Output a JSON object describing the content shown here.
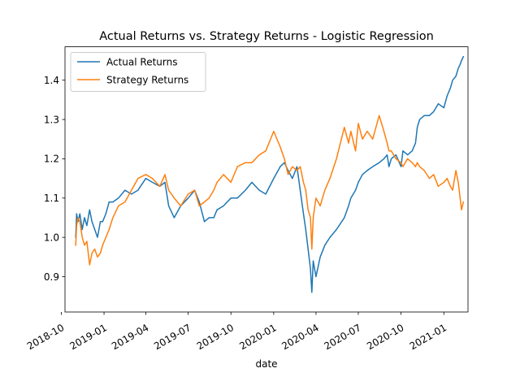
{
  "chart_data": {
    "type": "line",
    "title": "Actual Returns vs. Strategy Returns - Logistic Regression",
    "xlabel": "date",
    "ylabel": "",
    "x_range": [
      "2018-10-09",
      "2021-02-22"
    ],
    "ylim": [
      0.81,
      1.485
    ],
    "grid": false,
    "legend_placement": "top-left",
    "x_ticks": [
      "2018-10",
      "2019-01",
      "2019-04",
      "2019-07",
      "2019-10",
      "2020-01",
      "2020-04",
      "2020-07",
      "2020-10",
      "2021-01"
    ],
    "y_ticks": [
      0.9,
      1.0,
      1.1,
      1.2,
      1.3,
      1.4
    ],
    "y_tick_labels": [
      "0.9",
      "1.0",
      "1.1",
      "1.2",
      "1.3",
      "1.4"
    ],
    "series": [
      {
        "name": "Actual Returns",
        "color": "#1f77b4",
        "x": [
          "2018-11-01",
          "2018-11-03",
          "2018-11-06",
          "2018-11-10",
          "2018-11-15",
          "2018-11-20",
          "2018-11-25",
          "2018-12-01",
          "2018-12-06",
          "2018-12-12",
          "2018-12-18",
          "2018-12-24",
          "2018-12-29",
          "2019-01-05",
          "2019-01-12",
          "2019-01-20",
          "2019-02-01",
          "2019-02-15",
          "2019-03-01",
          "2019-03-15",
          "2019-04-01",
          "2019-04-15",
          "2019-05-01",
          "2019-05-12",
          "2019-05-20",
          "2019-06-01",
          "2019-06-15",
          "2019-07-01",
          "2019-07-15",
          "2019-07-25",
          "2019-08-05",
          "2019-08-15",
          "2019-08-25",
          "2019-09-01",
          "2019-09-15",
          "2019-10-01",
          "2019-10-15",
          "2019-11-01",
          "2019-11-15",
          "2019-12-01",
          "2019-12-15",
          "2020-01-01",
          "2020-01-15",
          "2020-01-24",
          "2020-02-01",
          "2020-02-10",
          "2020-02-20",
          "2020-02-27",
          "2020-03-05",
          "2020-03-10",
          "2020-03-15",
          "2020-03-20",
          "2020-03-23",
          "2020-03-26",
          "2020-04-01",
          "2020-04-10",
          "2020-04-20",
          "2020-05-01",
          "2020-05-15",
          "2020-06-01",
          "2020-06-10",
          "2020-06-15",
          "2020-06-25",
          "2020-07-01",
          "2020-07-10",
          "2020-07-20",
          "2020-08-01",
          "2020-08-15",
          "2020-08-25",
          "2020-09-01",
          "2020-09-05",
          "2020-09-10",
          "2020-09-20",
          "2020-10-01",
          "2020-10-05",
          "2020-10-15",
          "2020-10-25",
          "2020-11-01",
          "2020-11-05",
          "2020-11-10",
          "2020-11-20",
          "2020-12-01",
          "2020-12-10",
          "2020-12-20",
          "2021-01-01",
          "2021-01-08",
          "2021-01-15",
          "2021-01-20",
          "2021-01-27",
          "2021-02-01",
          "2021-02-05",
          "2021-02-08",
          "2021-02-12"
        ],
        "values": [
          1.0,
          1.06,
          1.04,
          1.06,
          1.02,
          1.05,
          1.03,
          1.07,
          1.04,
          1.02,
          1.0,
          1.04,
          1.04,
          1.06,
          1.09,
          1.09,
          1.1,
          1.12,
          1.11,
          1.12,
          1.15,
          1.14,
          1.13,
          1.14,
          1.08,
          1.05,
          1.08,
          1.1,
          1.12,
          1.09,
          1.04,
          1.05,
          1.05,
          1.07,
          1.08,
          1.1,
          1.1,
          1.12,
          1.14,
          1.12,
          1.11,
          1.15,
          1.18,
          1.19,
          1.17,
          1.15,
          1.18,
          1.12,
          1.06,
          1.02,
          0.97,
          0.92,
          0.86,
          0.94,
          0.9,
          0.95,
          0.98,
          1.0,
          1.02,
          1.05,
          1.08,
          1.1,
          1.12,
          1.14,
          1.16,
          1.17,
          1.18,
          1.19,
          1.2,
          1.21,
          1.18,
          1.2,
          1.21,
          1.18,
          1.22,
          1.21,
          1.22,
          1.24,
          1.28,
          1.3,
          1.31,
          1.31,
          1.32,
          1.34,
          1.33,
          1.36,
          1.38,
          1.4,
          1.41,
          1.43,
          1.44,
          1.45,
          1.46
        ]
      },
      {
        "name": "Strategy Returns",
        "color": "#ff7f0e",
        "x": [
          "2018-11-01",
          "2018-11-03",
          "2018-11-06",
          "2018-11-10",
          "2018-11-15",
          "2018-11-20",
          "2018-11-25",
          "2018-12-01",
          "2018-12-06",
          "2018-12-12",
          "2018-12-18",
          "2018-12-24",
          "2018-12-29",
          "2019-01-05",
          "2019-01-12",
          "2019-01-20",
          "2019-02-01",
          "2019-02-15",
          "2019-03-01",
          "2019-03-15",
          "2019-04-01",
          "2019-04-15",
          "2019-05-01",
          "2019-05-12",
          "2019-05-20",
          "2019-06-01",
          "2019-06-15",
          "2019-07-01",
          "2019-07-15",
          "2019-07-25",
          "2019-08-05",
          "2019-08-15",
          "2019-08-25",
          "2019-09-01",
          "2019-09-15",
          "2019-10-01",
          "2019-10-15",
          "2019-11-01",
          "2019-11-15",
          "2019-12-01",
          "2019-12-15",
          "2020-01-01",
          "2020-01-15",
          "2020-01-24",
          "2020-02-01",
          "2020-02-10",
          "2020-02-20",
          "2020-02-27",
          "2020-03-05",
          "2020-03-10",
          "2020-03-15",
          "2020-03-20",
          "2020-03-23",
          "2020-03-26",
          "2020-04-01",
          "2020-04-10",
          "2020-04-20",
          "2020-05-01",
          "2020-05-15",
          "2020-06-01",
          "2020-06-10",
          "2020-06-15",
          "2020-06-25",
          "2020-07-01",
          "2020-07-10",
          "2020-07-20",
          "2020-08-01",
          "2020-08-15",
          "2020-08-25",
          "2020-09-01",
          "2020-09-05",
          "2020-09-10",
          "2020-09-20",
          "2020-10-01",
          "2020-10-05",
          "2020-10-15",
          "2020-10-25",
          "2020-11-01",
          "2020-11-05",
          "2020-11-10",
          "2020-11-20",
          "2020-12-01",
          "2020-12-10",
          "2020-12-20",
          "2021-01-01",
          "2021-01-08",
          "2021-01-15",
          "2021-01-20",
          "2021-01-27",
          "2021-02-01",
          "2021-02-05",
          "2021-02-08",
          "2021-02-12"
        ],
        "values": [
          0.98,
          1.03,
          1.05,
          1.04,
          1.0,
          0.98,
          0.99,
          0.93,
          0.96,
          0.97,
          0.95,
          0.96,
          0.98,
          1.0,
          1.02,
          1.05,
          1.08,
          1.09,
          1.12,
          1.15,
          1.16,
          1.15,
          1.13,
          1.16,
          1.12,
          1.1,
          1.08,
          1.11,
          1.12,
          1.08,
          1.09,
          1.1,
          1.12,
          1.14,
          1.16,
          1.14,
          1.18,
          1.19,
          1.19,
          1.21,
          1.22,
          1.27,
          1.23,
          1.2,
          1.16,
          1.18,
          1.17,
          1.18,
          1.14,
          1.12,
          1.07,
          1.05,
          0.97,
          1.05,
          1.1,
          1.08,
          1.12,
          1.15,
          1.2,
          1.28,
          1.24,
          1.27,
          1.22,
          1.29,
          1.25,
          1.27,
          1.25,
          1.31,
          1.27,
          1.24,
          1.22,
          1.22,
          1.2,
          1.19,
          1.18,
          1.2,
          1.19,
          1.18,
          1.19,
          1.18,
          1.17,
          1.15,
          1.16,
          1.13,
          1.14,
          1.15,
          1.13,
          1.12,
          1.17,
          1.14,
          1.1,
          1.07,
          1.09
        ]
      }
    ]
  }
}
